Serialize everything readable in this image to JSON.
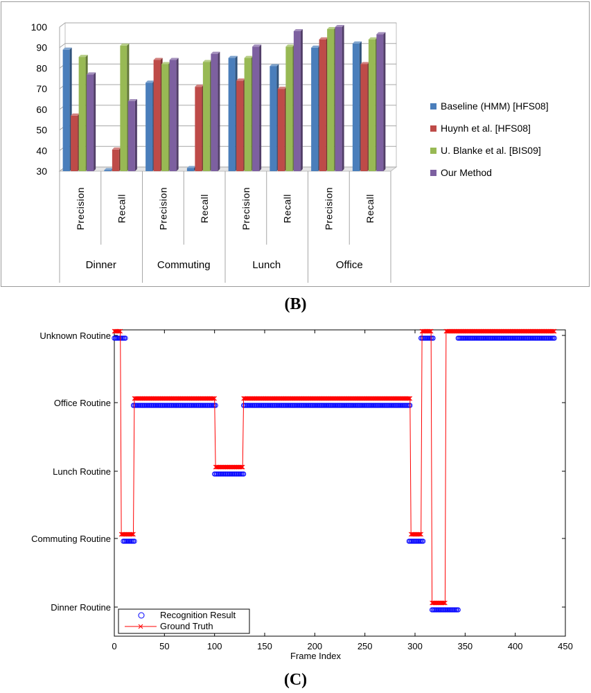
{
  "captions": {
    "b": "(B)",
    "c": "(C)"
  },
  "chart_data": [
    {
      "type": "bar",
      "panel": "B",
      "title": "",
      "ylim": [
        30,
        100
      ],
      "yticks": [
        30,
        40,
        50,
        60,
        70,
        80,
        90,
        100
      ],
      "groups": [
        {
          "name": "Dinner",
          "metrics": [
            "Precision",
            "Recall"
          ]
        },
        {
          "name": "Commuting",
          "metrics": [
            "Precision",
            "Recall"
          ]
        },
        {
          "name": "Lunch",
          "metrics": [
            "Precision",
            "Recall"
          ]
        },
        {
          "name": "Office",
          "metrics": [
            "Precision",
            "Recall"
          ]
        }
      ],
      "categories": [
        "Dinner Precision",
        "Dinner Recall",
        "Commuting Precision",
        "Commuting Recall",
        "Lunch Precision",
        "Lunch Recall",
        "Office Precision",
        "Office Recall"
      ],
      "series": [
        {
          "name": "Baseline (HMM) [HFS08]",
          "color": "#4a7ebb",
          "values": [
            89,
            30.5,
            73,
            31.5,
            85,
            81,
            90,
            92
          ]
        },
        {
          "name": "Huynh et al. [HFS08]",
          "color": "#be4b48",
          "values": [
            57,
            40.5,
            84,
            71,
            74,
            70,
            94,
            82
          ]
        },
        {
          "name": "U. Blanke et al. [BIS09]",
          "color": "#98b954",
          "values": [
            85.5,
            91,
            82,
            83,
            85,
            90.5,
            99,
            94
          ]
        },
        {
          "name": "Our Method",
          "color": "#7d60a0",
          "values": [
            77,
            64,
            84,
            87,
            90.5,
            98,
            100,
            96.5
          ]
        }
      ],
      "legend_position": "right"
    },
    {
      "type": "line",
      "panel": "C",
      "xlabel": "Frame Index",
      "ylabel": "",
      "xlim": [
        0,
        450
      ],
      "xticks": [
        0,
        50,
        100,
        150,
        200,
        250,
        300,
        350,
        400,
        450
      ],
      "ycategories": [
        "Dinner Routine",
        "Commuting Routine",
        "Lunch Routine",
        "Office Routine",
        "Unknown Routine"
      ],
      "series": [
        {
          "name": "Recognition Result",
          "color": "#0000ff",
          "marker": "circle",
          "segments": [
            {
              "from": 0,
              "to": 11,
              "level": 4
            },
            {
              "from": 9,
              "to": 20,
              "level": 1
            },
            {
              "from": 19,
              "to": 101,
              "level": 3
            },
            {
              "from": 100,
              "to": 129,
              "level": 2
            },
            {
              "from": 129,
              "to": 295,
              "level": 3
            },
            {
              "from": 294,
              "to": 308,
              "level": 1
            },
            {
              "from": 306,
              "to": 318,
              "level": 4
            },
            {
              "from": 317,
              "to": 343,
              "level": 0
            },
            {
              "from": 343,
              "to": 439,
              "level": 4
            }
          ]
        },
        {
          "name": "Ground Truth",
          "color": "#ff0000",
          "marker": "x",
          "steps": [
            [
              0,
              4
            ],
            [
              6,
              4
            ],
            [
              7,
              1
            ],
            [
              19,
              1
            ],
            [
              20,
              3
            ],
            [
              100,
              3
            ],
            [
              101,
              2
            ],
            [
              128,
              2
            ],
            [
              129,
              3
            ],
            [
              295,
              3
            ],
            [
              296,
              1
            ],
            [
              306,
              1
            ],
            [
              307,
              4
            ],
            [
              316,
              4
            ],
            [
              317,
              0
            ],
            [
              330,
              0
            ],
            [
              331,
              4
            ],
            [
              439,
              4
            ]
          ]
        }
      ],
      "legend_position": "bottom-left"
    }
  ]
}
